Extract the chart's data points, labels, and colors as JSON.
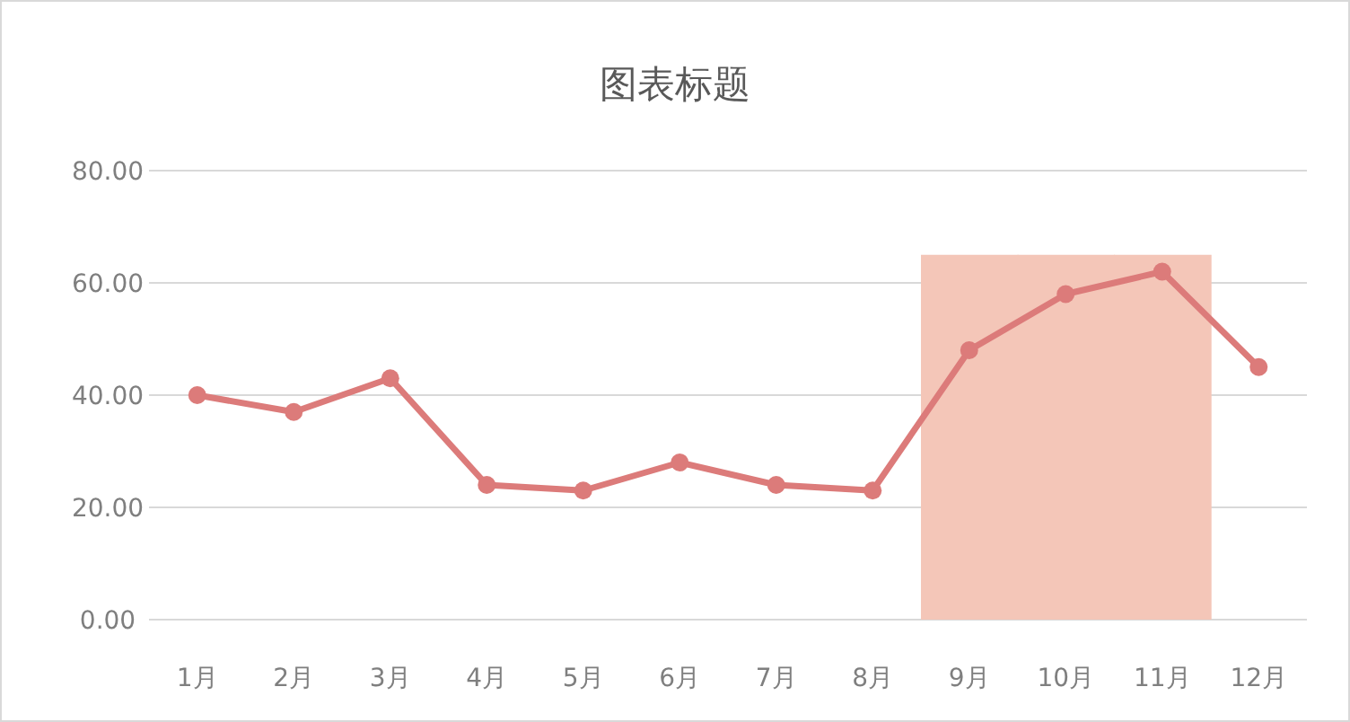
{
  "chart_data": {
    "type": "line",
    "title": "图表标题",
    "categories": [
      "1月",
      "2月",
      "3月",
      "4月",
      "5月",
      "6月",
      "7月",
      "8月",
      "9月",
      "10月",
      "11月",
      "12月"
    ],
    "series": [
      {
        "type": "bar",
        "color": "#f4c6b8",
        "values": [
          null,
          null,
          null,
          null,
          null,
          null,
          null,
          null,
          65,
          65,
          65,
          null
        ]
      },
      {
        "color": "#dc7b7a",
        "values": [
          40,
          37,
          43,
          24,
          23,
          28,
          24,
          23,
          48,
          58,
          62,
          45
        ]
      }
    ],
    "ylim": [
      0,
      80
    ],
    "yticks": [
      {
        "value": 0,
        "label": "0.00"
      },
      {
        "value": 20,
        "label": "20.00"
      },
      {
        "value": 40,
        "label": "40.00"
      },
      {
        "value": 60,
        "label": "60.00"
      },
      {
        "value": 80,
        "label": "80.00"
      }
    ],
    "grid": "y",
    "marker": "circle"
  }
}
